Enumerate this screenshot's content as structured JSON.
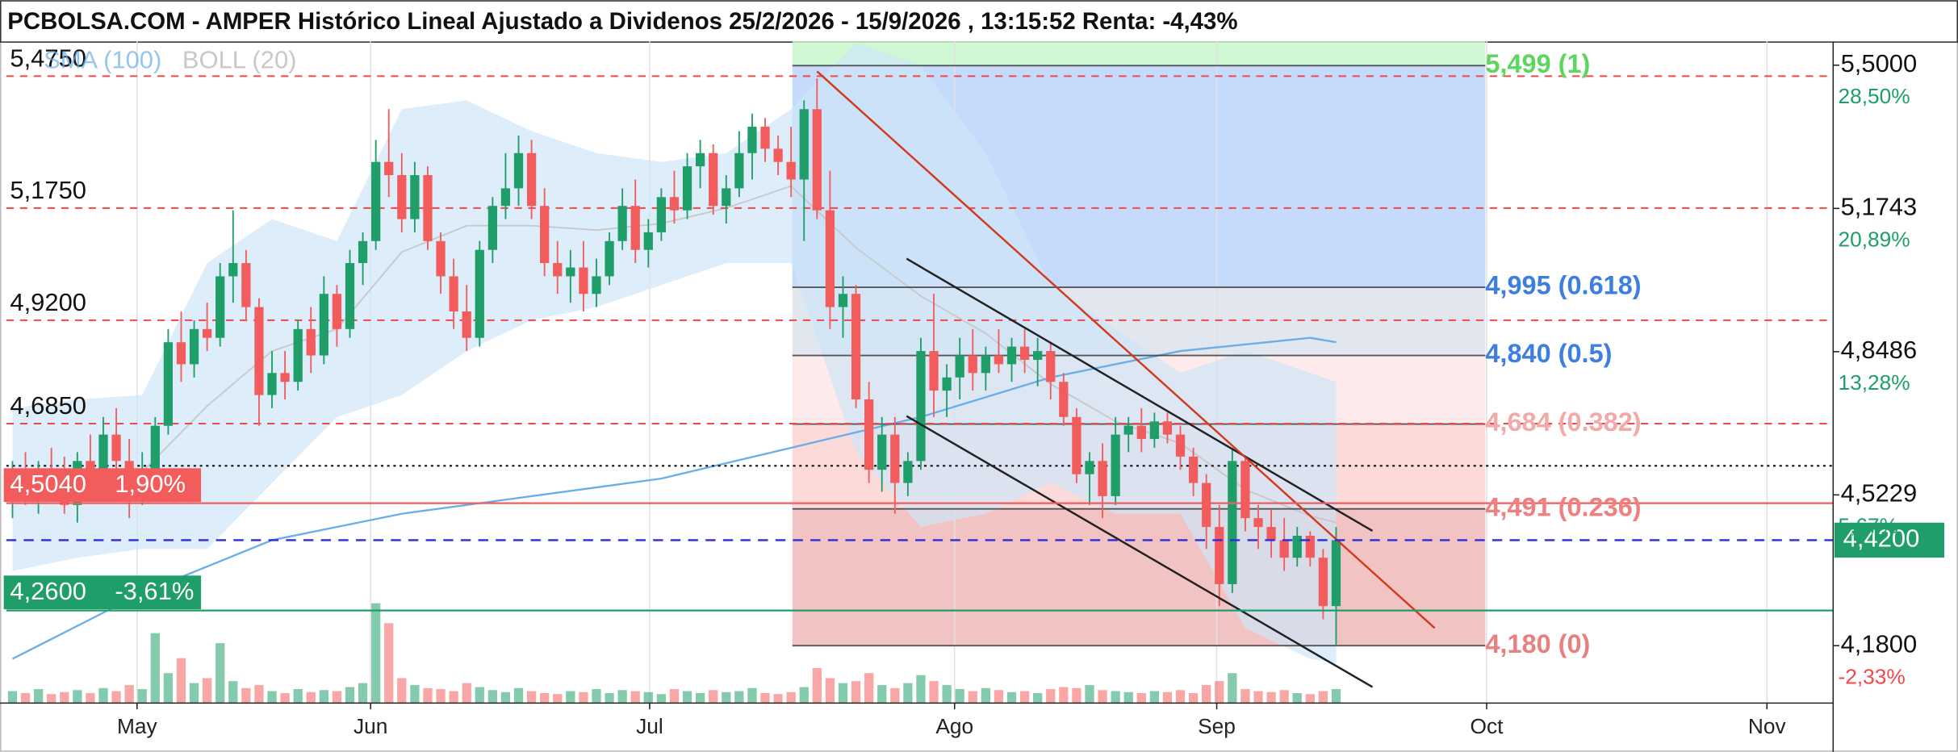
{
  "chart_data": {
    "type": "candlestick",
    "title": "PCBOLSA.COM - AMPER Histórico Lineal Ajustado a Dividenos 25/2/2026 - 15/9/2026 , 13:15:52 Renta: -4,43%",
    "xlim": [
      -0.48,
      140.3
    ],
    "ylim": [
      4.0495,
      5.554
    ],
    "xticks": [
      {
        "value": 9.6,
        "label": "May"
      },
      {
        "value": 27.6,
        "label": "Jun"
      },
      {
        "value": 49.1,
        "label": "Jul"
      },
      {
        "value": 72.6,
        "label": "Ago"
      },
      {
        "value": 92.8,
        "label": "Sep"
      },
      {
        "value": 113.6,
        "label": "Oct"
      },
      {
        "value": 135.2,
        "label": "Nov"
      }
    ],
    "yticks": [
      {
        "value": 5.5,
        "label": "5,5000"
      },
      {
        "value": 5.1743,
        "label": "5,1743"
      },
      {
        "value": 4.8486,
        "label": "4,8486"
      },
      {
        "value": 4.5229,
        "label": "4,5229"
      },
      {
        "value": 4.18,
        "label": "4,1800"
      }
    ],
    "ytick_pct_labels": [
      "28,50%",
      "20,89%",
      "13,28%",
      "5,67%",
      "-2,33%"
    ],
    "ytick_pct_colors": [
      "#1f9e6a",
      "#1f9e6a",
      "#1f9e6a",
      "#1f9e6a",
      "#f04848"
    ],
    "grid": true,
    "up_color": "#1f9e6a",
    "down_color": "#f25c5c",
    "candles": [
      [
        4.55,
        4.6,
        4.47,
        4.58
      ],
      [
        4.58,
        4.62,
        4.5,
        4.52
      ],
      [
        4.52,
        4.6,
        4.48,
        4.57
      ],
      [
        4.57,
        4.63,
        4.52,
        4.55
      ],
      [
        4.55,
        4.61,
        4.48,
        4.5
      ],
      [
        4.5,
        4.62,
        4.46,
        4.6
      ],
      [
        4.6,
        4.66,
        4.55,
        4.57
      ],
      [
        4.57,
        4.7,
        4.52,
        4.66
      ],
      [
        4.66,
        4.72,
        4.58,
        4.6
      ],
      [
        4.6,
        4.65,
        4.47,
        4.52
      ],
      [
        4.52,
        4.62,
        4.5,
        4.58
      ],
      [
        4.58,
        4.7,
        4.56,
        4.68
      ],
      [
        4.68,
        4.9,
        4.66,
        4.87
      ],
      [
        4.87,
        4.94,
        4.78,
        4.82
      ],
      [
        4.82,
        4.92,
        4.79,
        4.9
      ],
      [
        4.9,
        4.96,
        4.85,
        4.88
      ],
      [
        4.88,
        5.05,
        4.86,
        5.02
      ],
      [
        5.02,
        5.17,
        4.96,
        5.05
      ],
      [
        5.05,
        5.08,
        4.92,
        4.95
      ],
      [
        4.95,
        4.97,
        4.68,
        4.75
      ],
      [
        4.75,
        4.85,
        4.72,
        4.8
      ],
      [
        4.8,
        4.85,
        4.74,
        4.78
      ],
      [
        4.78,
        4.92,
        4.76,
        4.9
      ],
      [
        4.9,
        4.95,
        4.8,
        4.84
      ],
      [
        4.84,
        5.02,
        4.82,
        4.98
      ],
      [
        4.98,
        5.0,
        4.86,
        4.9
      ],
      [
        4.9,
        5.08,
        4.88,
        5.05
      ],
      [
        5.05,
        5.12,
        5.0,
        5.1
      ],
      [
        5.1,
        5.33,
        5.08,
        5.28
      ],
      [
        5.28,
        5.4,
        5.2,
        5.25
      ],
      [
        5.25,
        5.3,
        5.12,
        5.15
      ],
      [
        5.15,
        5.28,
        5.12,
        5.25
      ],
      [
        5.25,
        5.27,
        5.08,
        5.1
      ],
      [
        5.1,
        5.12,
        4.98,
        5.02
      ],
      [
        5.02,
        5.06,
        4.9,
        4.94
      ],
      [
        4.94,
        5.0,
        4.85,
        4.88
      ],
      [
        4.88,
        5.1,
        4.86,
        5.08
      ],
      [
        5.08,
        5.2,
        5.05,
        5.18
      ],
      [
        5.18,
        5.3,
        5.15,
        5.22
      ],
      [
        5.22,
        5.34,
        5.18,
        5.3
      ],
      [
        5.3,
        5.33,
        5.15,
        5.18
      ],
      [
        5.18,
        5.22,
        5.02,
        5.05
      ],
      [
        5.05,
        5.1,
        4.98,
        5.02
      ],
      [
        5.02,
        5.08,
        4.96,
        5.04
      ],
      [
        5.04,
        5.1,
        4.94,
        4.98
      ],
      [
        4.98,
        5.06,
        4.95,
        5.02
      ],
      [
        5.02,
        5.12,
        5.0,
        5.1
      ],
      [
        5.1,
        5.22,
        5.08,
        5.18
      ],
      [
        5.18,
        5.24,
        5.05,
        5.08
      ],
      [
        5.08,
        5.15,
        5.04,
        5.12
      ],
      [
        5.12,
        5.22,
        5.1,
        5.2
      ],
      [
        5.2,
        5.26,
        5.14,
        5.17
      ],
      [
        5.17,
        5.3,
        5.15,
        5.27
      ],
      [
        5.27,
        5.33,
        5.22,
        5.3
      ],
      [
        5.3,
        5.32,
        5.16,
        5.18
      ],
      [
        5.18,
        5.25,
        5.14,
        5.22
      ],
      [
        5.22,
        5.35,
        5.2,
        5.3
      ],
      [
        5.3,
        5.39,
        5.24,
        5.36
      ],
      [
        5.36,
        5.38,
        5.28,
        5.31
      ],
      [
        5.31,
        5.34,
        5.25,
        5.28
      ],
      [
        5.28,
        5.36,
        5.2,
        5.24
      ],
      [
        5.24,
        5.42,
        5.1,
        5.4
      ],
      [
        5.4,
        5.47,
        5.15,
        5.17
      ],
      [
        5.17,
        5.26,
        4.9,
        4.95
      ],
      [
        4.95,
        5.02,
        4.88,
        4.98
      ],
      [
        4.98,
        5.0,
        4.72,
        4.74
      ],
      [
        4.74,
        4.78,
        4.55,
        4.58
      ],
      [
        4.58,
        4.7,
        4.53,
        4.66
      ],
      [
        4.66,
        4.7,
        4.48,
        4.55
      ],
      [
        4.55,
        4.62,
        4.52,
        4.6
      ],
      [
        4.6,
        4.88,
        4.58,
        4.85
      ],
      [
        4.85,
        4.98,
        4.7,
        4.76
      ],
      [
        4.76,
        4.82,
        4.7,
        4.79
      ],
      [
        4.79,
        4.88,
        4.74,
        4.84
      ],
      [
        4.84,
        4.9,
        4.76,
        4.8
      ],
      [
        4.8,
        4.86,
        4.76,
        4.84
      ],
      [
        4.84,
        4.9,
        4.8,
        4.82
      ],
      [
        4.82,
        4.88,
        4.78,
        4.86
      ],
      [
        4.86,
        4.9,
        4.8,
        4.83
      ],
      [
        4.83,
        4.88,
        4.77,
        4.85
      ],
      [
        4.85,
        4.87,
        4.74,
        4.78
      ],
      [
        4.78,
        4.8,
        4.68,
        4.7
      ],
      [
        4.7,
        4.72,
        4.55,
        4.57
      ],
      [
        4.57,
        4.62,
        4.5,
        4.6
      ],
      [
        4.6,
        4.64,
        4.47,
        4.52
      ],
      [
        4.52,
        4.7,
        4.5,
        4.66
      ],
      [
        4.66,
        4.7,
        4.62,
        4.68
      ],
      [
        4.68,
        4.72,
        4.62,
        4.65
      ],
      [
        4.65,
        4.71,
        4.63,
        4.69
      ],
      [
        4.69,
        4.71,
        4.64,
        4.66
      ],
      [
        4.66,
        4.68,
        4.58,
        4.61
      ],
      [
        4.61,
        4.63,
        4.52,
        4.55
      ],
      [
        4.55,
        4.57,
        4.4,
        4.45
      ],
      [
        4.45,
        4.5,
        4.27,
        4.32
      ],
      [
        4.32,
        4.63,
        4.3,
        4.6
      ],
      [
        4.6,
        4.61,
        4.44,
        4.47
      ],
      [
        4.47,
        4.5,
        4.4,
        4.45
      ],
      [
        4.45,
        4.49,
        4.38,
        4.42
      ],
      [
        4.42,
        4.47,
        4.35,
        4.38
      ],
      [
        4.38,
        4.45,
        4.36,
        4.43
      ],
      [
        4.43,
        4.44,
        4.36,
        4.38
      ],
      [
        4.38,
        4.4,
        4.24,
        4.27
      ],
      [
        4.27,
        4.45,
        4.18,
        4.42
      ]
    ],
    "volumes": [
      12,
      10,
      14,
      9,
      11,
      13,
      10,
      15,
      12,
      18,
      14,
      70,
      30,
      45,
      20,
      25,
      60,
      22,
      15,
      18,
      12,
      10,
      14,
      11,
      13,
      12,
      16,
      20,
      100,
      80,
      25,
      18,
      15,
      14,
      12,
      20,
      16,
      13,
      11,
      15,
      12,
      10,
      9,
      12,
      11,
      14,
      10,
      13,
      12,
      11,
      9,
      14,
      12,
      10,
      13,
      11,
      12,
      15,
      10,
      9,
      11,
      16,
      35,
      25,
      20,
      22,
      30,
      18,
      15,
      20,
      28,
      22,
      18,
      14,
      12,
      15,
      13,
      11,
      12,
      10,
      14,
      16,
      15,
      18,
      13,
      12,
      11,
      10,
      12,
      11,
      13,
      10,
      18,
      22,
      30,
      14,
      12,
      11,
      13,
      10,
      9,
      12,
      14
    ],
    "volume_max": 100,
    "bollinger": {
      "name": "BOLL (20)",
      "color": "#c8c8c8",
      "fill": "#cfe6f8",
      "x": [
        0,
        5,
        10,
        15,
        20,
        25,
        30,
        35,
        40,
        45,
        50,
        55,
        60,
        65,
        70,
        75,
        80,
        85,
        90,
        95,
        100,
        102
      ],
      "upper": [
        4.72,
        4.74,
        4.75,
        5.05,
        5.15,
        5.1,
        5.4,
        5.42,
        5.35,
        5.3,
        5.28,
        5.3,
        5.4,
        5.55,
        5.5,
        5.3,
        5.0,
        4.9,
        4.8,
        4.85,
        4.8,
        4.78
      ],
      "lower": [
        4.35,
        4.38,
        4.4,
        4.4,
        4.55,
        4.7,
        4.75,
        4.85,
        4.92,
        4.95,
        5.0,
        5.05,
        5.05,
        4.62,
        4.45,
        4.48,
        4.55,
        4.48,
        4.48,
        4.22,
        4.15,
        4.14
      ],
      "mid": [
        4.535,
        4.56,
        4.575,
        4.725,
        4.85,
        4.9,
        5.075,
        5.135,
        5.135,
        5.125,
        5.14,
        5.175,
        5.225,
        5.085,
        4.975,
        4.89,
        4.775,
        4.69,
        4.64,
        4.535,
        4.475,
        4.46
      ]
    },
    "sma": {
      "name": "SMA (100)",
      "color": "#6aaee8",
      "x": [
        0,
        10,
        20,
        30,
        40,
        50,
        60,
        70,
        80,
        90,
        100,
        102
      ],
      "values": [
        4.15,
        4.3,
        4.42,
        4.48,
        4.52,
        4.56,
        4.63,
        4.7,
        4.79,
        4.85,
        4.88,
        4.87
      ]
    },
    "levels": [
      {
        "value": 5.475,
        "label": "5,4750"
      },
      {
        "value": 5.175,
        "label": "5,1750"
      },
      {
        "value": 4.92,
        "label": "4,9200"
      },
      {
        "value": 4.685,
        "label": "4,6850"
      }
    ],
    "level_color": "#f04848",
    "reference_line": 4.589,
    "price_lines": [
      {
        "value": 4.504,
        "label": "4,5040",
        "pct": "1,90%",
        "color": "#f25c5c"
      },
      {
        "value": 4.26,
        "label": "4,2600",
        "pct": "-3,61%",
        "color": "#1f9e6a"
      }
    ],
    "last_price": {
      "value": 4.42,
      "label": "4,4200",
      "color": "#1f9e6a",
      "line_color": "#2a2ae0"
    },
    "fib": {
      "x": [
        60.1,
        113.5
      ],
      "levels": [
        {
          "value": 5.499,
          "label": "5,499 (1)",
          "color": "#5cd65c"
        },
        {
          "value": 4.995,
          "label": "4,995 (0.618)",
          "color": "#3d7fe0"
        },
        {
          "value": 4.84,
          "label": "4,840 (0.5)",
          "color": "#3d7fe0"
        },
        {
          "value": 4.684,
          "label": "4,684 (0.382)",
          "color": "#f5a8a8"
        },
        {
          "value": 4.491,
          "label": "4,491 (0.236)",
          "color": "#f08080"
        },
        {
          "value": 4.18,
          "label": "4,180 (0)",
          "color": "#e88080"
        }
      ],
      "zone_colors": [
        "#c8f7cc",
        "#bcd3fa",
        "#dde2ec",
        "#fde6e6",
        "#fbd3d3",
        "#f0b9b9"
      ]
    },
    "trendlines": [
      {
        "color": "#222222",
        "points": [
          [
            68.9,
            5.06
          ],
          [
            104.8,
            4.441
          ]
        ]
      },
      {
        "color": "#222222",
        "points": [
          [
            68.9,
            4.702
          ],
          [
            104.8,
            4.086
          ]
        ]
      },
      {
        "color": "#d23a1e",
        "points": [
          [
            62.0,
            5.486
          ],
          [
            109.6,
            4.22
          ]
        ]
      }
    ]
  }
}
